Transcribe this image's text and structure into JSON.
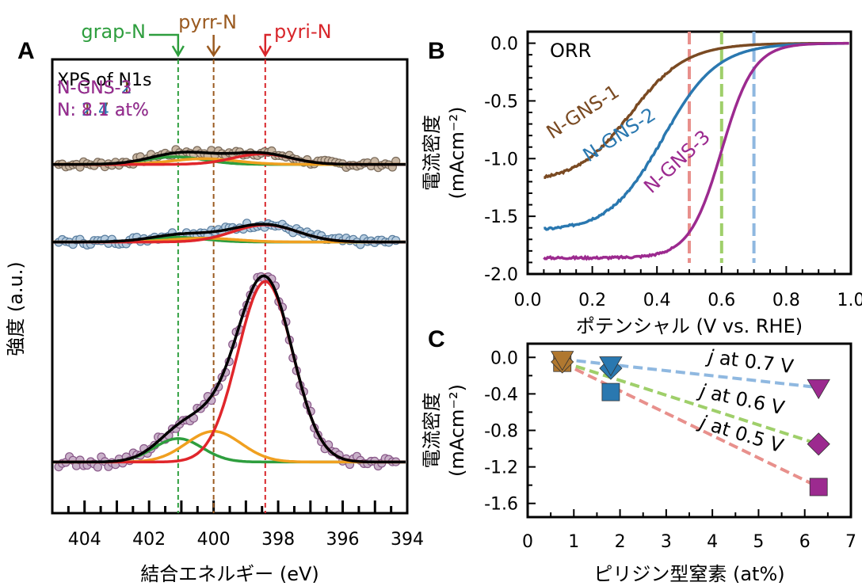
{
  "chart_data": [
    {
      "panel": "A",
      "type": "scatter",
      "title": "XPS of N1s",
      "xlabel": "結合エネルギー (eV)",
      "ylabel": "強度 (a.u.)",
      "xlim": [
        405,
        394
      ],
      "x_reversed": true,
      "xticks": [
        404,
        402,
        400,
        398,
        396,
        394
      ],
      "peak_markers": [
        {
          "name": "grap-N",
          "x": 401.1,
          "color": "#2e9e3e"
        },
        {
          "name": "pyrr-N",
          "x": 400.0,
          "color": "#9a5a20"
        },
        {
          "name": "pyri-N",
          "x": 398.4,
          "color": "#d8262b"
        }
      ],
      "spectra": [
        {
          "name": "N-GNS-1",
          "label": "N: 1.7 at%",
          "color": "#7a4a22",
          "marker_fill": "#c9b7a3",
          "marker_stroke": "#7a6a5a",
          "baseline": 0.02,
          "peaks": {
            "grap": [
              401.2,
              0.08,
              0.9
            ],
            "pyrr": [
              400.3,
              0.06,
              1.0
            ],
            "pyri": [
              398.5,
              0.11,
              0.9
            ]
          }
        },
        {
          "name": "N-GNS-2",
          "label": "N: 2.4 at%",
          "color": "#2a78b0",
          "marker_fill": "#b7cde0",
          "marker_stroke": "#5b7fa0",
          "baseline": 0.02,
          "peaks": {
            "grap": [
              401.2,
              0.05,
              0.9
            ],
            "pyrr": [
              400.3,
              0.04,
              1.0
            ],
            "pyri": [
              398.4,
              0.18,
              1.0
            ]
          }
        },
        {
          "name": "N-GNS-3",
          "label": "N: 8.1 at%",
          "color": "#9c2a8f",
          "marker_fill": "#c9b1c9",
          "marker_stroke": "#8a5a8a",
          "baseline": 0.02,
          "peaks": {
            "grap": [
              401.1,
              0.13,
              0.75
            ],
            "pyrr": [
              400.0,
              0.17,
              0.85
            ],
            "pyri": [
              398.4,
              1.0,
              0.85
            ]
          }
        }
      ]
    },
    {
      "panel": "B",
      "type": "line",
      "title": "ORR",
      "xlabel": "ポテンシャル (V vs. RHE)",
      "ylabel_line1": "電流密度",
      "ylabel_line2": "(mAcm⁻²)",
      "xlim": [
        0,
        1.0
      ],
      "ylim": [
        -2.0,
        0.1
      ],
      "xticks": [
        0.0,
        0.2,
        0.4,
        0.6,
        0.8,
        1.0
      ],
      "yticks": [
        0.0,
        -0.5,
        -1.0,
        -1.5,
        -2.0
      ],
      "vlines": [
        {
          "x": 0.5,
          "color": "#e8908c"
        },
        {
          "x": 0.6,
          "color": "#9fcf6a"
        },
        {
          "x": 0.7,
          "color": "#8fb8e0"
        }
      ],
      "series": [
        {
          "name": "N-GNS-1",
          "color": "#7a4a22",
          "jl": -1.21,
          "e_half": 0.32,
          "k": 0.085
        },
        {
          "name": "N-GNS-2",
          "color": "#2a78b0",
          "jl": -1.63,
          "e_half": 0.42,
          "k": 0.083
        },
        {
          "name": "N-GNS-3",
          "color": "#9c2a8f",
          "jl": -1.86,
          "e_half": 0.6,
          "k": 0.05
        }
      ]
    },
    {
      "panel": "C",
      "type": "scatter",
      "xlabel": "ピリジン型窒素 (at%)",
      "ylabel_line1": "電流密度",
      "ylabel_line2": "(mAcm⁻²)",
      "xlim": [
        0,
        7
      ],
      "ylim": [
        -1.75,
        0.15
      ],
      "xticks": [
        0,
        1,
        2,
        3,
        4,
        5,
        6,
        7
      ],
      "yticks": [
        0.0,
        -0.4,
        -0.8,
        -1.2,
        -1.6
      ],
      "series": [
        {
          "name": "j at 0.7 V",
          "j_text": "j",
          "rest_text": " at 0.7 V",
          "marker": "triangle-down",
          "line_color": "#8fb8e0",
          "x": [
            0.75,
            1.8,
            6.3
          ],
          "y": [
            -0.02,
            -0.08,
            -0.33
          ],
          "colors": [
            "#b07830",
            "#2a78b0",
            "#9c2a8f"
          ]
        },
        {
          "name": "j at 0.6 V",
          "j_text": "j",
          "rest_text": " at 0.6 V",
          "marker": "diamond",
          "line_color": "#9fcf6a",
          "x": [
            0.75,
            1.8,
            6.3
          ],
          "y": [
            -0.05,
            -0.12,
            -0.95
          ],
          "colors": [
            "#b07830",
            "#2a78b0",
            "#9c2a8f"
          ]
        },
        {
          "name": "j at 0.5 V",
          "j_text": "j",
          "rest_text": " at 0.5 V",
          "marker": "square",
          "line_color": "#e8908c",
          "x": [
            0.75,
            1.8,
            6.3
          ],
          "y": [
            -0.06,
            -0.38,
            -1.42
          ],
          "colors": [
            "#b07830",
            "#2a78b0",
            "#9c2a8f"
          ]
        }
      ]
    }
  ]
}
